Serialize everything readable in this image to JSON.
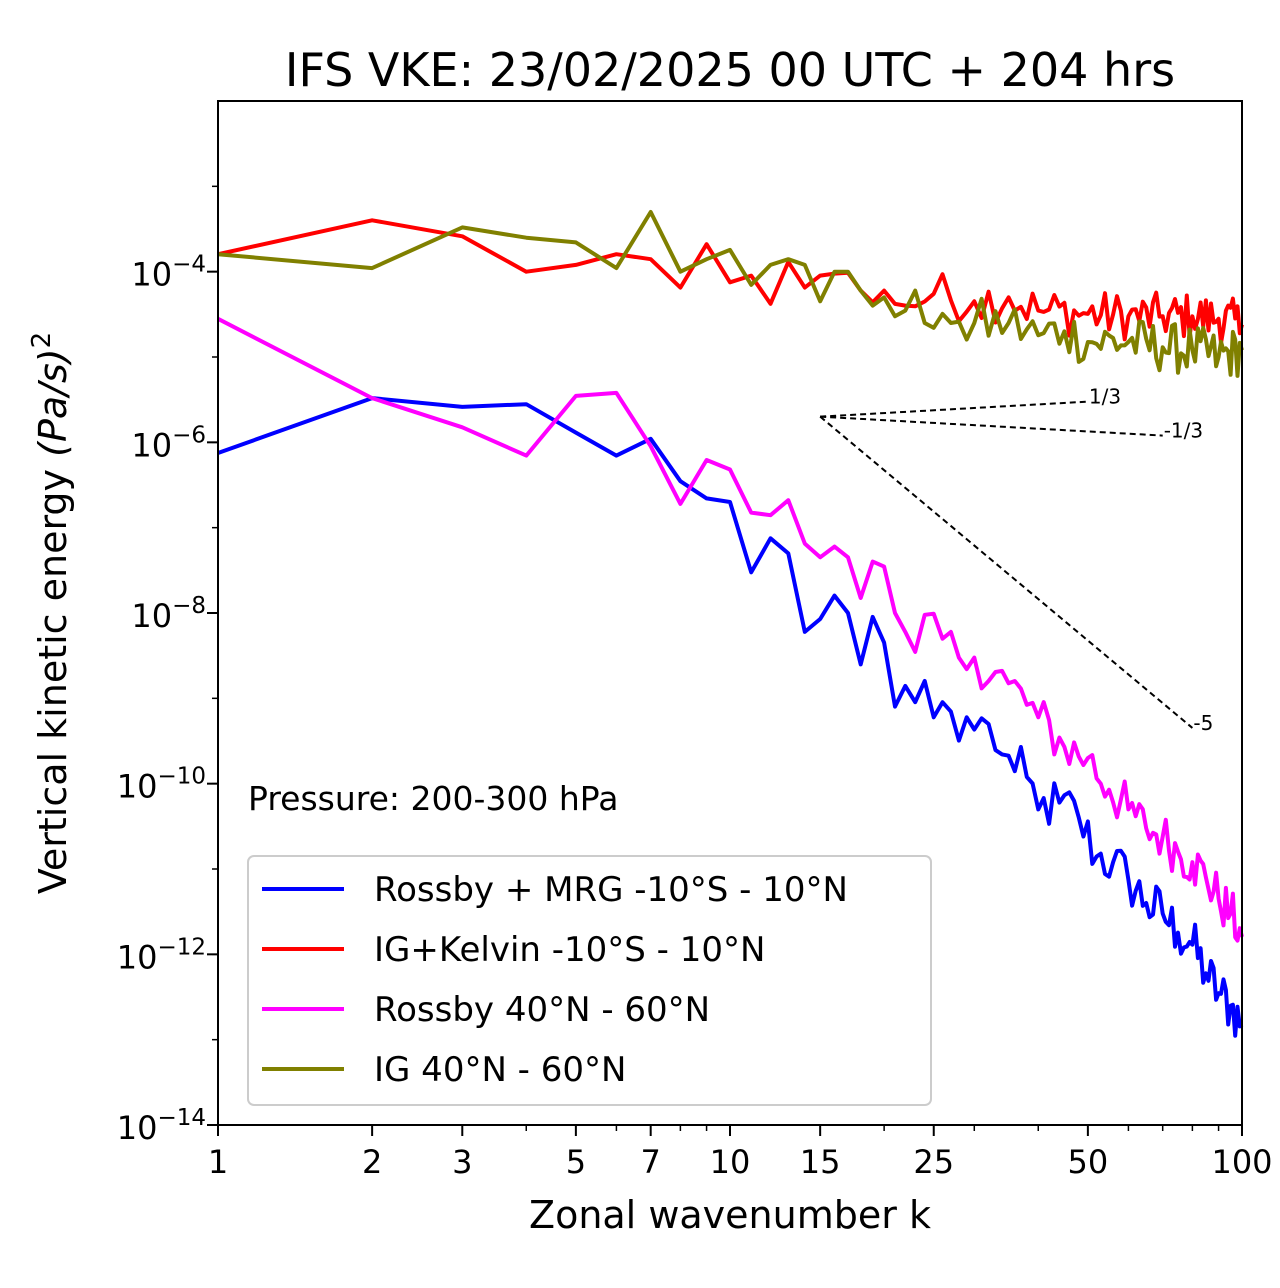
{
  "chart_data": {
    "type": "line",
    "title": "IFS VKE: 23/02/2025 00 UTC + 204 hrs",
    "xlabel": "Zonal wavenumber k",
    "ylabel_main": "Vertical kinetic energy",
    "ylabel_unit": "(Pa/s)",
    "ylabel_exp": "2",
    "xscale": "log",
    "yscale": "log",
    "xlim": [
      1,
      100
    ],
    "ylim": [
      1e-14,
      0.01
    ],
    "xticks": [
      {
        "value": 1,
        "label": "1"
      },
      {
        "value": 2,
        "label": "2"
      },
      {
        "value": 3,
        "label": "3"
      },
      {
        "value": 5,
        "label": "5"
      },
      {
        "value": 7,
        "label": "7"
      },
      {
        "value": 10,
        "label": "10"
      },
      {
        "value": 15,
        "label": "15"
      },
      {
        "value": 25,
        "label": "25"
      },
      {
        "value": 50,
        "label": "50"
      },
      {
        "value": 100,
        "label": "100"
      }
    ],
    "yticks": [
      {
        "value": 0.0001,
        "base": "10",
        "exp": "−4"
      },
      {
        "value": 1e-06,
        "base": "10",
        "exp": "−6"
      },
      {
        "value": 1e-08,
        "base": "10",
        "exp": "−8"
      },
      {
        "value": 1e-10,
        "base": "10",
        "exp": "−10"
      },
      {
        "value": 1e-12,
        "base": "10",
        "exp": "−12"
      },
      {
        "value": 1e-14,
        "base": "10",
        "exp": "−14"
      }
    ],
    "annotation": "Pressure: 200-300 hPa",
    "reference_lines": [
      {
        "slope": "1/3",
        "from": [
          15,
          2e-06
        ],
        "to": [
          50,
          3e-06
        ]
      },
      {
        "slope": "-1/3",
        "from": [
          15,
          2e-06
        ],
        "to": [
          70,
          1.2e-06
        ]
      },
      {
        "slope": "-5",
        "from": [
          15,
          2e-06
        ],
        "to": [
          80,
          4.5e-10
        ]
      }
    ],
    "legend_position": "lower-left",
    "series": [
      {
        "name": "Rossby + MRG -10°S - 10°N",
        "color": "#0000ff",
        "anchors": [
          [
            1,
            7.5e-07
          ],
          [
            2,
            3.3e-06
          ],
          [
            3,
            2.6e-06
          ],
          [
            4,
            2.8e-06
          ],
          [
            5,
            1.3e-06
          ],
          [
            6,
            7e-07
          ],
          [
            7,
            1.1e-06
          ],
          [
            8,
            3.5e-07
          ],
          [
            9,
            2.2e-07
          ],
          [
            10,
            2e-07
          ],
          [
            11,
            3e-08
          ],
          [
            12,
            7.5e-08
          ],
          [
            13,
            5e-08
          ],
          [
            14,
            6e-09
          ],
          [
            15,
            8.5e-09
          ],
          [
            16,
            1.6e-08
          ],
          [
            17,
            1e-08
          ],
          [
            18,
            2.5e-09
          ],
          [
            19,
            9e-09
          ],
          [
            20,
            4.5e-09
          ],
          [
            21,
            8e-10
          ],
          [
            22,
            1.4e-09
          ],
          [
            23,
            9e-10
          ],
          [
            24,
            1.6e-09
          ],
          [
            25,
            6e-10
          ],
          [
            26,
            9e-10
          ],
          [
            27,
            7e-10
          ],
          [
            28,
            3.2e-10
          ],
          [
            29,
            6e-10
          ],
          [
            30,
            4.3e-10
          ],
          [
            32,
            5e-10
          ],
          [
            34,
            2.2e-10
          ],
          [
            36,
            1.4e-10
          ],
          [
            38,
            1.2e-10
          ],
          [
            40,
            5e-11
          ],
          [
            44,
            6e-11
          ],
          [
            48,
            4e-11
          ],
          [
            52,
            1.4e-11
          ],
          [
            56,
            1.2e-11
          ],
          [
            60,
            7.5e-12
          ],
          [
            65,
            4e-12
          ],
          [
            70,
            3e-12
          ],
          [
            75,
            1.8e-12
          ],
          [
            80,
            1.3e-12
          ],
          [
            85,
            6e-13
          ],
          [
            90,
            3.5e-13
          ],
          [
            95,
            2.5e-13
          ],
          [
            100,
            1.5e-13
          ]
        ],
        "noise": 0.32
      },
      {
        "name": "IG+Kelvin -10°S - 10°N",
        "color": "#ff0000",
        "anchors": [
          [
            1,
            0.00016
          ],
          [
            2,
            0.0004
          ],
          [
            3,
            0.00026
          ],
          [
            4,
            0.0001
          ],
          [
            5,
            0.00012
          ],
          [
            6,
            0.00016
          ],
          [
            7,
            0.00014
          ],
          [
            8,
            6.5e-05
          ],
          [
            9,
            0.00021
          ],
          [
            10,
            7.5e-05
          ],
          [
            11,
            9e-05
          ],
          [
            12,
            4.2e-05
          ],
          [
            13,
            0.00013
          ],
          [
            14,
            6.5e-05
          ],
          [
            15,
            9e-05
          ],
          [
            16,
            9.5e-05
          ],
          [
            18,
            6e-05
          ],
          [
            20,
            6e-05
          ],
          [
            22,
            4e-05
          ],
          [
            25,
            5.5e-05
          ],
          [
            30,
            4.5e-05
          ],
          [
            35,
            5e-05
          ],
          [
            40,
            3.5e-05
          ],
          [
            50,
            3.2e-05
          ],
          [
            60,
            3e-05
          ],
          [
            70,
            3e-05
          ],
          [
            80,
            3e-05
          ],
          [
            90,
            2.8e-05
          ],
          [
            100,
            2.4e-05
          ]
        ],
        "noise": 0.28
      },
      {
        "name": "Rossby 40°N - 60°N",
        "color": "#ff00ff",
        "anchors": [
          [
            1,
            2.8e-05
          ],
          [
            2,
            3.3e-06
          ],
          [
            3,
            1.5e-06
          ],
          [
            4,
            7e-07
          ],
          [
            5,
            3.5e-06
          ],
          [
            6,
            3.8e-06
          ],
          [
            7,
            9e-07
          ],
          [
            8,
            1.9e-07
          ],
          [
            9,
            6.2e-07
          ],
          [
            10,
            4.8e-07
          ],
          [
            11,
            1.5e-07
          ],
          [
            12,
            1.4e-07
          ],
          [
            13,
            2.1e-07
          ],
          [
            14,
            6.5e-08
          ],
          [
            15,
            4.5e-08
          ],
          [
            16,
            6e-08
          ],
          [
            17,
            4.5e-08
          ],
          [
            18,
            1.5e-08
          ],
          [
            19,
            4e-08
          ],
          [
            20,
            3.5e-08
          ],
          [
            21,
            1e-08
          ],
          [
            22,
            6e-09
          ],
          [
            23,
            3.5e-09
          ],
          [
            24,
            9.5e-09
          ],
          [
            25,
            9.8e-09
          ],
          [
            26,
            5e-09
          ],
          [
            27,
            6e-09
          ],
          [
            28,
            3e-09
          ],
          [
            29,
            2.2e-09
          ],
          [
            30,
            3e-09
          ],
          [
            35,
            1.5e-09
          ],
          [
            40,
            6e-10
          ],
          [
            45,
            2.7e-10
          ],
          [
            50,
            2e-10
          ],
          [
            55,
            8.5e-11
          ],
          [
            60,
            5e-11
          ],
          [
            65,
            3e-11
          ],
          [
            70,
            2.4e-11
          ],
          [
            75,
            1.6e-11
          ],
          [
            80,
            1.2e-11
          ],
          [
            85,
            8e-12
          ],
          [
            90,
            4.5e-12
          ],
          [
            95,
            3e-12
          ],
          [
            100,
            1.6e-12
          ]
        ],
        "noise": 0.3
      },
      {
        "name": "IG 40°N - 60°N",
        "color": "#808000",
        "anchors": [
          [
            1,
            0.00016
          ],
          [
            2,
            0.00011
          ],
          [
            3,
            0.00033
          ],
          [
            4,
            0.00025
          ],
          [
            5,
            0.00022
          ],
          [
            6,
            0.00011
          ],
          [
            7,
            0.0005
          ],
          [
            8,
            0.0001
          ],
          [
            9,
            0.00014
          ],
          [
            10,
            0.00018
          ],
          [
            11,
            7e-05
          ],
          [
            12,
            0.00012
          ],
          [
            13,
            0.00014
          ],
          [
            14,
            0.00012
          ],
          [
            15,
            4.5e-05
          ],
          [
            16,
            0.0001
          ],
          [
            17,
            0.0001
          ],
          [
            18,
            6e-05
          ],
          [
            19,
            4e-05
          ],
          [
            20,
            5e-05
          ],
          [
            21,
            3e-05
          ],
          [
            22,
            3.5e-05
          ],
          [
            23,
            6e-05
          ],
          [
            24,
            2.5e-05
          ],
          [
            25,
            2.2e-05
          ],
          [
            26,
            3.2e-05
          ],
          [
            27,
            2.5e-05
          ],
          [
            28,
            2.6e-05
          ],
          [
            29,
            1.6e-05
          ],
          [
            30,
            2.5e-05
          ],
          [
            35,
            2.5e-05
          ],
          [
            40,
            1.8e-05
          ],
          [
            45,
            2e-05
          ],
          [
            50,
            1.5e-05
          ],
          [
            60,
            1.5e-05
          ],
          [
            70,
            1.3e-05
          ],
          [
            80,
            1.2e-05
          ],
          [
            90,
            1e-05
          ],
          [
            100,
            1.2e-05
          ]
        ],
        "noise": 0.3
      }
    ]
  }
}
